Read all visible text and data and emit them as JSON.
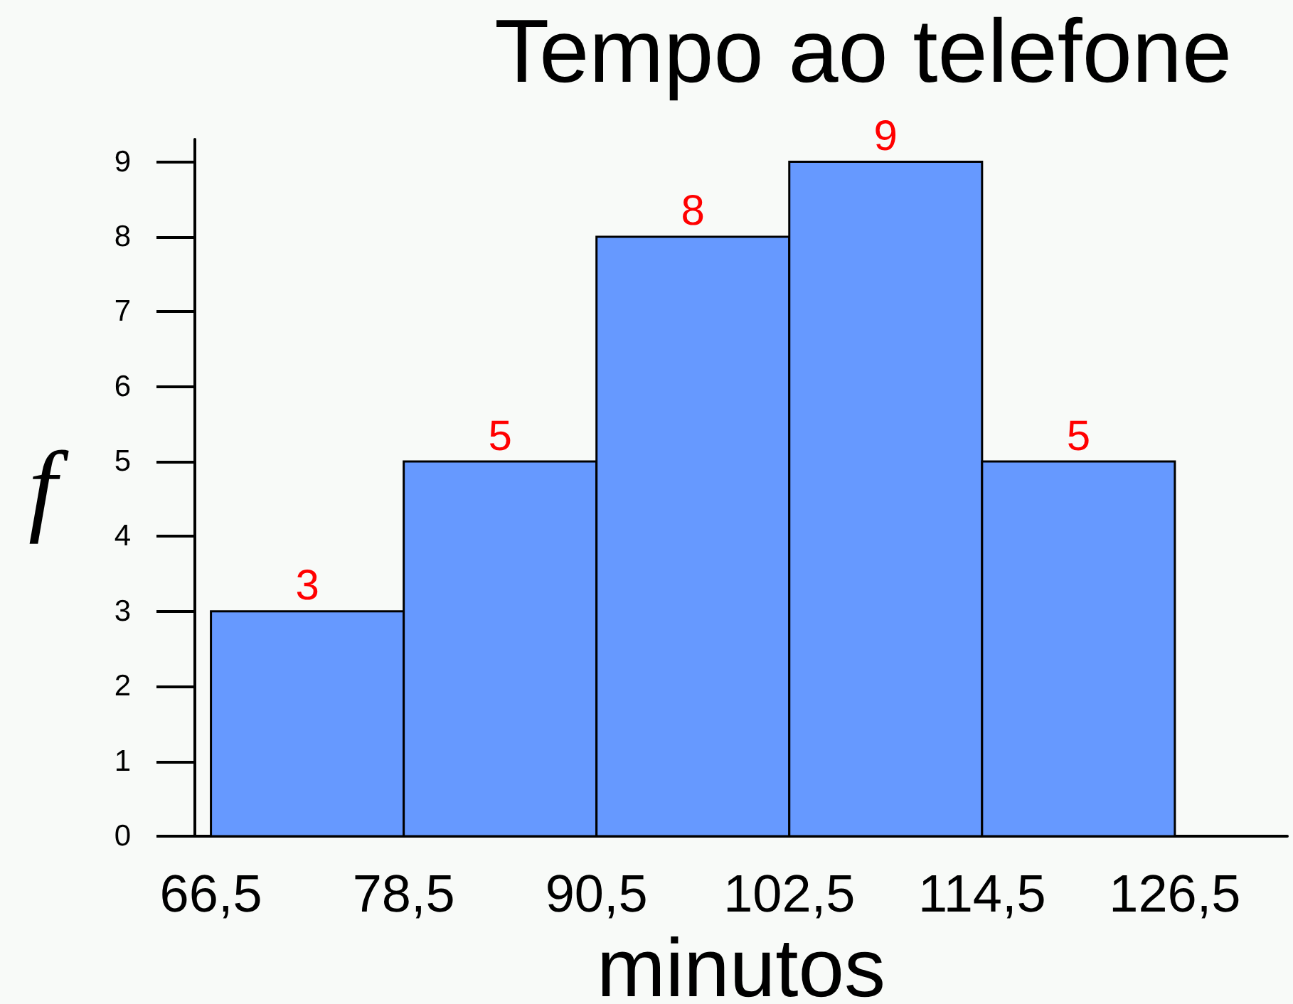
{
  "chart_data": {
    "type": "histogram",
    "title": "Tempo ao telefone",
    "xlabel": "minutos",
    "ylabel": "f",
    "bins": [
      66.5,
      78.5,
      90.5,
      102.5,
      114.5,
      126.5
    ],
    "values": [
      3,
      5,
      8,
      9,
      5
    ],
    "color": "#6699ff",
    "data_labels": true,
    "xlim": [
      65.5,
      133.5
    ],
    "ylim": [
      0,
      9.3
    ],
    "xticks": [
      {
        "value": 66.5,
        "label": "66,5"
      },
      {
        "value": 78.5,
        "label": "78,5"
      },
      {
        "value": 90.5,
        "label": "90,5"
      },
      {
        "value": 102.5,
        "label": "102,5"
      },
      {
        "value": 114.5,
        "label": "114,5"
      },
      {
        "value": 126.5,
        "label": "126,5"
      }
    ],
    "yticks": [
      0,
      1,
      2,
      3,
      4,
      5,
      6,
      7,
      8,
      9
    ]
  }
}
